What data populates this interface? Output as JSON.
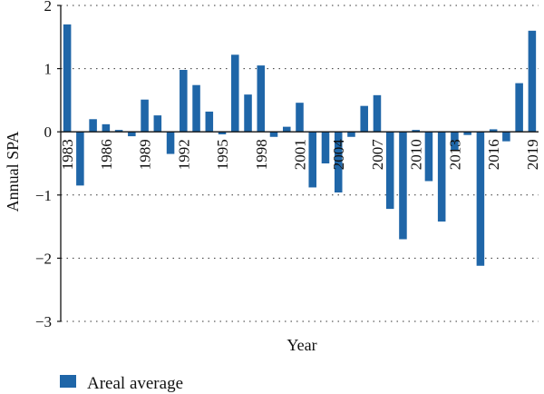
{
  "chart_data": {
    "type": "bar",
    "xlabel": "Year",
    "ylabel": "Annual SPA",
    "ylim": [
      -3,
      2
    ],
    "yticks": [
      2,
      1,
      0,
      -1,
      -2,
      -3
    ],
    "ytick_labels": [
      "2",
      "1",
      "0",
      "−1",
      "−2",
      "−3"
    ],
    "xtick_labels": [
      "1983",
      "1986",
      "1989",
      "1992",
      "1995",
      "1998",
      "2001",
      "2004",
      "2007",
      "2010",
      "2013",
      "2016",
      "2019"
    ],
    "grid": "horizontal-dotted",
    "legend_position": "bottom-left",
    "color": "#1f66a8",
    "series": [
      {
        "name": "Areal average",
        "x": [
          1983,
          1984,
          1985,
          1986,
          1987,
          1988,
          1989,
          1990,
          1991,
          1992,
          1993,
          1994,
          1995,
          1996,
          1997,
          1998,
          1999,
          2000,
          2001,
          2002,
          2003,
          2004,
          2005,
          2006,
          2007,
          2008,
          2009,
          2010,
          2011,
          2012,
          2013,
          2014,
          2015,
          2016,
          2017,
          2018,
          2019
        ],
        "values": [
          1.7,
          -0.85,
          0.2,
          0.12,
          0.03,
          -0.07,
          0.51,
          0.26,
          -0.35,
          0.98,
          0.74,
          0.32,
          -0.04,
          1.22,
          0.59,
          1.05,
          -0.08,
          0.08,
          0.46,
          -0.88,
          -0.5,
          -0.96,
          -0.08,
          0.41,
          0.58,
          -1.22,
          -1.7,
          0.03,
          -0.78,
          -1.42,
          -0.3,
          -0.05,
          -2.12,
          0.04,
          -0.15,
          0.77,
          1.6
        ]
      }
    ]
  }
}
